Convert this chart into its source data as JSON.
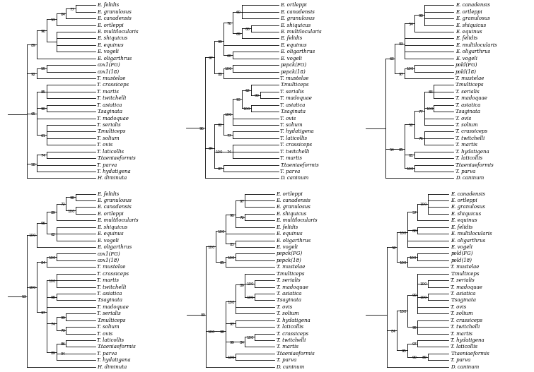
{
  "font_size": 5.0,
  "line_width": 0.6,
  "fig_width": 7.55,
  "fig_height": 5.27,
  "background": "#ffffff",
  "trees": {
    "cox1_ml": {
      "taxa": [
        "E. felidis",
        "E. granulosus",
        "E. canadensis",
        "E. ortleppi",
        "E. multilocularis",
        "E. shiquicus",
        "E. equinus",
        "E. vogeli",
        "E. oligarthrus",
        "cox1(FG)",
        "cox1(18)",
        "T. mustelae",
        "T. crassiceps",
        "T. martis",
        "T. twitchelli",
        "T. asiatica",
        "T.saginata",
        "T. madoquae",
        "T. serialis",
        "T.multiceps",
        "T. solium",
        "T. ovis",
        "T. laticollis",
        "T.taeniaeformis",
        "T. parva",
        "T. hydatigena",
        "H. diminuta"
      ]
    },
    "pepck_ml": {
      "taxa": [
        "E. ortleppi",
        "E. canadensis",
        "E. granulosus",
        "E. shiquicus",
        "E. multilocularis",
        "E. felidis",
        "E. equinus",
        "E. oligarthrus",
        "E. vogeli",
        "pepck(FG)",
        "pepck(18)",
        "T. mustelae",
        "T.multiceps",
        "T. serialis",
        "T. madoquae",
        "T. asiatica",
        "T.saginata",
        "T. ovis",
        "T. solium",
        "T. hydatigena",
        "T. laticollis",
        "T. crassiceps",
        "T. twitchelli",
        "T. martis",
        "T.taeniaeformis",
        "T. parva",
        "D. caninum"
      ]
    },
    "pold_ml": {
      "taxa": [
        "E. canadensis",
        "E. ortleppi",
        "E. granulosus",
        "E. shiquicus",
        "E. equinus",
        "E. felidis",
        "E. multilocularis",
        "E. oligarthrus",
        "E. vogeli",
        "pold(FG)",
        "pold(18)",
        "T. mustelae",
        "T.multiceps",
        "T. serialis",
        "T. madoquae",
        "T. asiatica",
        "T.saginata",
        "T. ovis",
        "T. solium",
        "T. crassiceps",
        "T. twitchelli",
        "T. martis",
        "T. hydatigena",
        "T. laticollis",
        "T.taeniaeformis",
        "T. parva",
        "D. caninum"
      ]
    },
    "cox1_bay": {
      "taxa": [
        "E. felidis",
        "E. granulosus",
        "E. canadensis",
        "E. ortleppi",
        "E. multilocularis",
        "E. shiquicus",
        "E. equinus",
        "E. vogeli",
        "E. oligarthrus",
        "cox1(FG)",
        "cox1(18)",
        "T. mustelae",
        "T. crassiceps",
        "T. martis",
        "T. twitchelli",
        "T. asiatica",
        "T.saginata",
        "T. madoquae",
        "T. serialis",
        "T.multiceps",
        "T. solium",
        "T. ovis",
        "T. laticollis",
        "T.taeniaeformis",
        "T. parva",
        "T. hydatigena",
        "H. diminuta"
      ]
    },
    "pepck_bay": {
      "taxa": [
        "E. ortleppi",
        "E. canadensis",
        "E. granulosus",
        "E. shiquicus",
        "E. multilocularis",
        "E. felidis",
        "E. equinus",
        "E. oligarthrus",
        "E. vogeli",
        "pepck(FG)",
        "pepck(18)",
        "T. mustelae",
        "T.multiceps",
        "T. serialis",
        "T. madoquae",
        "T. asiatica",
        "T.saginata",
        "T. ovis",
        "T. solium",
        "T. hydatigena",
        "T. laticollis",
        "T. crassiceps",
        "T. twitchelli",
        "T. martis",
        "T.taeniaeformis",
        "T. parva",
        "D. caninum"
      ]
    },
    "pold_bay": {
      "taxa": [
        "E. canadensis",
        "E. ortleppi",
        "E. granulosus",
        "E. shiquicus",
        "E. equinus",
        "E. felidis",
        "E. multilocularis",
        "E. oligarthrus",
        "E. vogeli",
        "pold(FG)",
        "pold(18)",
        "T. mustelae",
        "T.multiceps",
        "T. serialis",
        "T. madoquae",
        "T. asiatica",
        "T.saginata",
        "T. ovis",
        "T. solium",
        "T. crassiceps",
        "T. twitchelli",
        "T. martis",
        "T. hydatigena",
        "T. laticollis",
        "T.taeniaeformis",
        "T. parva",
        "D. caninum"
      ]
    }
  }
}
